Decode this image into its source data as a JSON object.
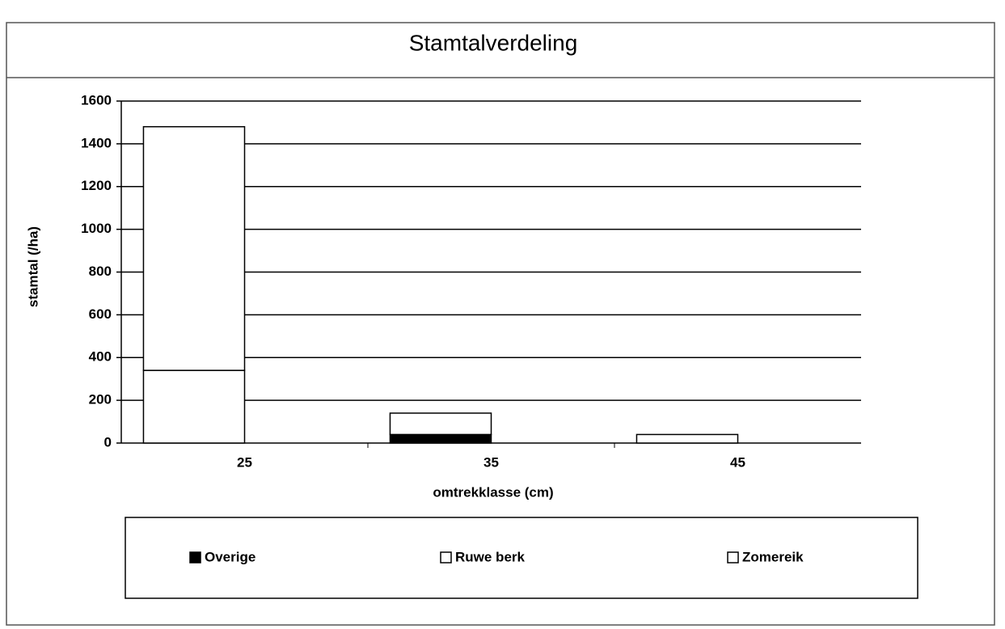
{
  "chart_data": {
    "type": "bar",
    "stacked": true,
    "title": "Stamtalverdeling",
    "x_label": "omtrekklasse (cm)",
    "y_label": "stamtal (/ha)",
    "categories": [
      "25",
      "35",
      "45"
    ],
    "series": [
      {
        "name": "Overige",
        "color": "#000000",
        "values": [
          0,
          40,
          0
        ]
      },
      {
        "name": "Ruwe berk",
        "color": "#ffffff",
        "values": [
          340,
          100,
          0
        ]
      },
      {
        "name": "Zomereik",
        "color": "#ffffff",
        "values": [
          1140,
          0,
          40
        ]
      }
    ],
    "ylim": [
      0,
      1600
    ],
    "yticks": [
      0,
      200,
      400,
      600,
      800,
      1000,
      1200,
      1400,
      1600
    ],
    "grid": true
  }
}
